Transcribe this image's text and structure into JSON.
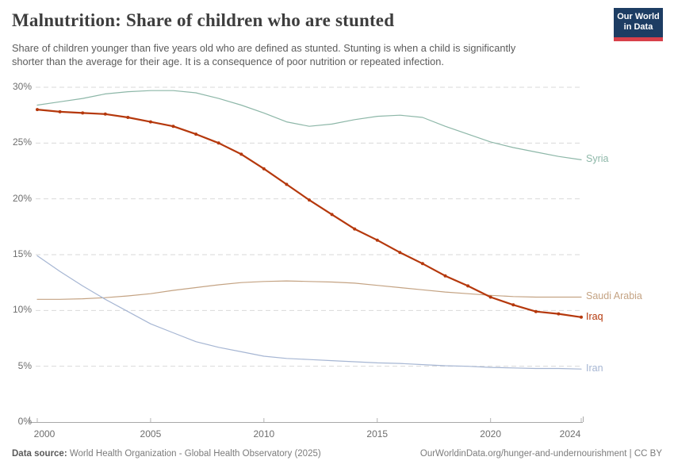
{
  "logo": {
    "line1": "Our World",
    "line2": "in Data",
    "bg_color": "#1d3d63",
    "stripe_color": "#d8404a"
  },
  "chart_data": {
    "type": "line",
    "title": "Malnutrition: Share of children who are stunted",
    "subtitle_lines": [
      "Share of children younger than five years old who are defined as stunted. Stunting is when a child is significantly",
      "shorter than the average for their age. It is a consequence of poor nutrition or repeated infection."
    ],
    "x": [
      2000,
      2001,
      2002,
      2003,
      2004,
      2005,
      2006,
      2007,
      2008,
      2009,
      2010,
      2011,
      2012,
      2013,
      2014,
      2015,
      2016,
      2017,
      2018,
      2019,
      2020,
      2021,
      2022,
      2023,
      2024
    ],
    "series": [
      {
        "name": "Syria",
        "color": "#8db7a8",
        "line_width": 1.2,
        "markers": false,
        "values": [
          28.4,
          28.7,
          29.0,
          29.4,
          29.6,
          29.7,
          29.7,
          29.5,
          29.0,
          28.4,
          27.7,
          26.9,
          26.5,
          26.7,
          27.1,
          27.4,
          27.5,
          27.3,
          26.5,
          25.8,
          25.1,
          24.6,
          24.2,
          23.8,
          23.5
        ]
      },
      {
        "name": "Saudi Arabia",
        "color": "#c4a383",
        "line_width": 1.2,
        "markers": false,
        "values": [
          11.0,
          11.0,
          11.05,
          11.15,
          11.3,
          11.5,
          11.8,
          12.05,
          12.3,
          12.5,
          12.6,
          12.65,
          12.6,
          12.55,
          12.45,
          12.25,
          12.05,
          11.85,
          11.65,
          11.5,
          11.35,
          11.25,
          11.2,
          11.2,
          11.2
        ]
      },
      {
        "name": "Iran",
        "color": "#a6b6d3",
        "line_width": 1.2,
        "markers": false,
        "values": [
          14.9,
          13.5,
          12.2,
          11.0,
          9.9,
          8.8,
          8.0,
          7.2,
          6.7,
          6.3,
          5.9,
          5.7,
          5.6,
          5.5,
          5.4,
          5.3,
          5.25,
          5.15,
          5.05,
          5.0,
          4.9,
          4.85,
          4.8,
          4.8,
          4.75
        ]
      },
      {
        "name": "Iraq",
        "color": "#b5380c",
        "line_width": 2.2,
        "markers": true,
        "values": [
          28.0,
          27.8,
          27.7,
          27.6,
          27.3,
          26.9,
          26.5,
          25.8,
          25.0,
          24.0,
          22.7,
          21.3,
          19.9,
          18.6,
          17.3,
          16.3,
          15.2,
          14.2,
          13.1,
          12.2,
          11.2,
          10.5,
          9.9,
          9.7,
          9.4
        ]
      }
    ],
    "ylim": [
      0,
      30
    ],
    "ytick_labels": [
      "30%",
      "25%",
      "20%",
      "15%",
      "10%",
      "5%",
      "0%"
    ],
    "xtick_labels": [
      "2000",
      "2005",
      "2010",
      "2015",
      "2020",
      "2024"
    ],
    "xtick_years": [
      2000,
      2005,
      2010,
      2015,
      2020,
      2024
    ],
    "ylabel": "",
    "xlabel": "",
    "grid": "horizontal-dashed",
    "legend_position": "right-end-labels"
  },
  "footer": {
    "source_label": "Data source:",
    "source_text": "World Health Organization - Global Health Observatory (2025)",
    "link_text": "OurWorldinData.org/hunger-and-undernourishment | CC BY"
  }
}
